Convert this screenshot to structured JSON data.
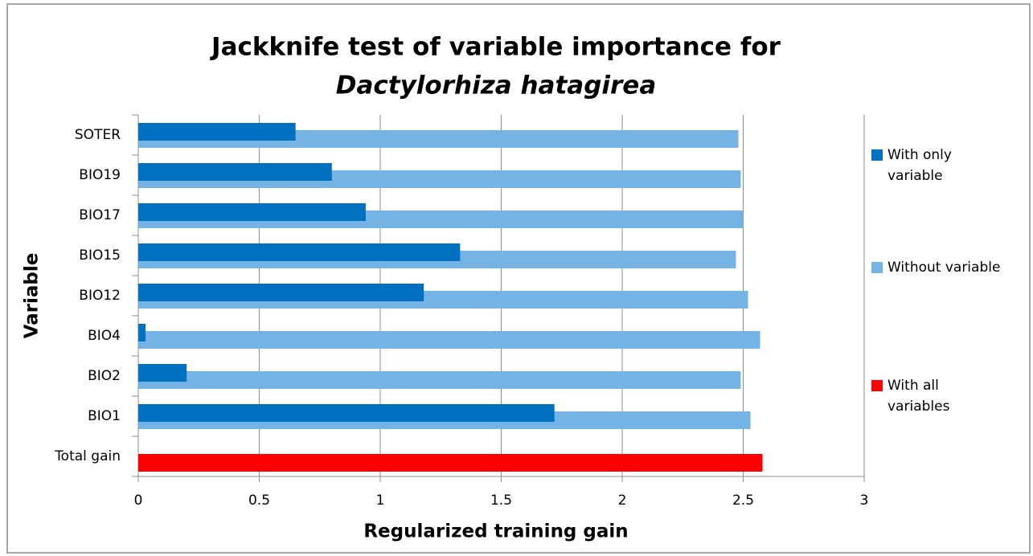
{
  "chart_data": {
    "type": "hbar",
    "title": "Jackknife test of variable importance for",
    "subtitle": "Dactylorhiza hatagirea",
    "x_label": "Regularized training gain",
    "y_label": "Variable",
    "categories": [
      "SOTER",
      "BIO19",
      "BIO17",
      "BIO15",
      "BIO12",
      "BIO4",
      "BIO2",
      "BIO1",
      "Total gain"
    ],
    "series": [
      {
        "name": "With only variable",
        "color": "#0070c0",
        "values": [
          0.65,
          0.8,
          0.94,
          1.33,
          1.18,
          0.03,
          0.2,
          1.72,
          null
        ]
      },
      {
        "name": "Without variable",
        "color": "#75b3e5",
        "values": [
          2.48,
          2.49,
          2.5,
          2.47,
          2.52,
          2.57,
          2.49,
          2.53,
          null
        ]
      },
      {
        "name": "With all variables",
        "color": "#ff0000",
        "values": [
          null,
          null,
          null,
          null,
          null,
          null,
          null,
          null,
          2.58
        ]
      }
    ],
    "xlim": [
      0,
      3
    ],
    "xticks": [
      0,
      0.5,
      1,
      1.5,
      2,
      2.5,
      3
    ],
    "grid": true
  }
}
